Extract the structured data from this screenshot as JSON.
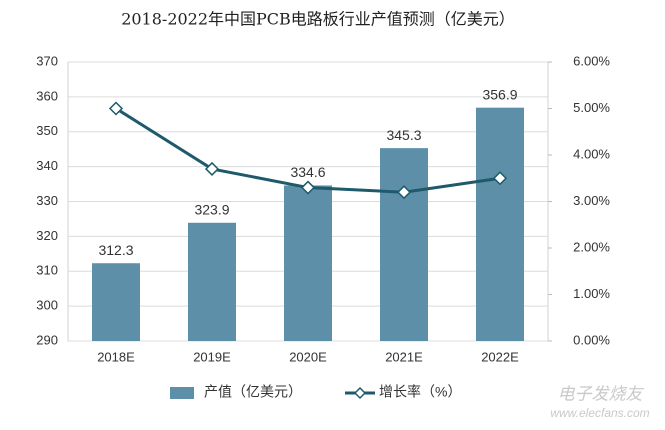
{
  "chart_data": {
    "type": "bar",
    "title": "2018-2022年中国PCB电路板行业产值预测（亿美元）",
    "categories": [
      "2018E",
      "2019E",
      "2020E",
      "2021E",
      "2022E"
    ],
    "series": [
      {
        "name": "产值（亿美元）",
        "type": "bar",
        "color": "#5e8fa8",
        "values": [
          312.3,
          323.9,
          334.6,
          345.3,
          356.9
        ]
      },
      {
        "name": "增长率（%）",
        "type": "line",
        "axis": "y2",
        "color": "#1e5a6c",
        "values": [
          5.0,
          3.7,
          3.3,
          3.2,
          3.5
        ]
      }
    ],
    "ylim": [
      290,
      370
    ],
    "yticks": [
      290,
      300,
      310,
      320,
      330,
      340,
      350,
      360,
      370
    ],
    "y2lim": [
      0,
      6
    ],
    "y2ticks": [
      {
        "value": 0,
        "label": "0.00%"
      },
      {
        "value": 1,
        "label": "1.00%"
      },
      {
        "value": 2,
        "label": "2.00%"
      },
      {
        "value": 3,
        "label": "3.00%"
      },
      {
        "value": 4,
        "label": "4.00%"
      },
      {
        "value": 5,
        "label": "5.00%"
      },
      {
        "value": 6,
        "label": "6.00%"
      }
    ],
    "grid": true,
    "legend": "bottom",
    "watermark": [
      "电子发烧友",
      "www.elecfans.com"
    ]
  }
}
